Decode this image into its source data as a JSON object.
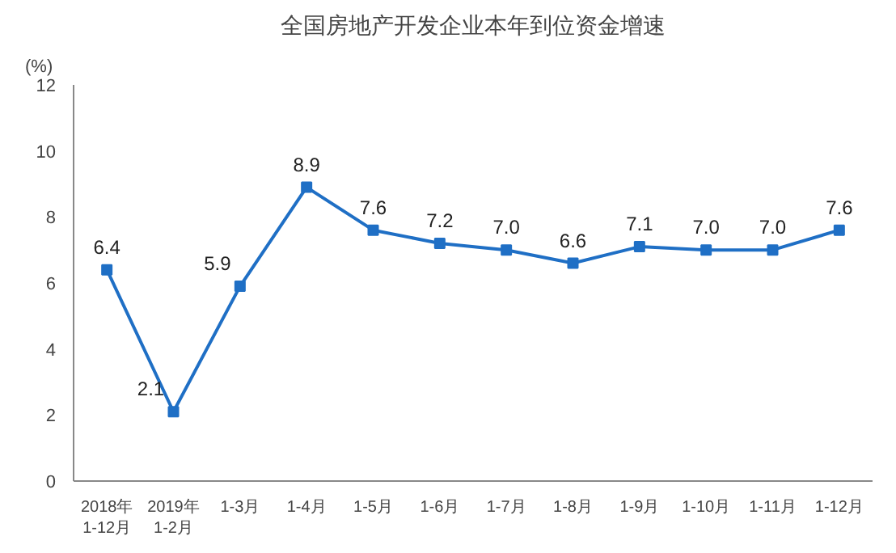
{
  "chart_data": {
    "type": "line",
    "title": "全国房地产开发企业本年到位资金增速",
    "ylabel": "(%)",
    "categories": [
      "2018年\n1-12月",
      "2019年\n1-2月",
      "1-3月",
      "1-4月",
      "1-5月",
      "1-6月",
      "1-7月",
      "1-8月",
      "1-9月",
      "1-10月",
      "1-11月",
      "1-12月"
    ],
    "series": [
      {
        "color": "#1f6fc5",
        "values": [
          6.4,
          2.1,
          5.9,
          8.9,
          7.6,
          7.2,
          7.0,
          6.6,
          7.1,
          7.0,
          7.0,
          7.6
        ],
        "value_labels": [
          "6.4",
          "2.1",
          "5.9",
          "8.9",
          "7.6",
          "7.2",
          "7.0",
          "6.6",
          "7.1",
          "7.0",
          "7.0",
          "7.6"
        ]
      }
    ],
    "ylim": [
      0,
      12
    ],
    "yticks": [
      0,
      2,
      4,
      6,
      8,
      10,
      12
    ],
    "grid": false,
    "marker": "square",
    "line_style": "solid"
  }
}
